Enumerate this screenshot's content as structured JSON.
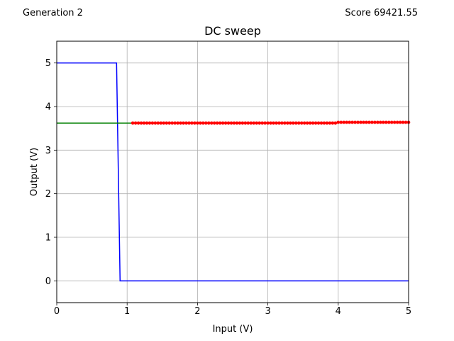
{
  "header": {
    "generation": "Generation 2",
    "score": "Score 69421.55"
  },
  "chart_data": {
    "type": "line",
    "title": "DC sweep",
    "xlabel": "Input (V)",
    "ylabel": "Output (V)",
    "xlim": [
      0,
      5
    ],
    "ylim": [
      -0.5,
      5.5
    ],
    "xticks": [
      0,
      1,
      2,
      3,
      4,
      5
    ],
    "yticks": [
      0,
      1,
      2,
      3,
      4,
      5
    ],
    "grid": true,
    "series": [
      {
        "color": "#0000ff",
        "style": "line",
        "x": [
          0,
          0.85,
          0.9,
          5
        ],
        "y": [
          5,
          5,
          0,
          0
        ]
      },
      {
        "color": "#008000",
        "style": "line",
        "x": [
          0,
          1.08
        ],
        "y": [
          3.62,
          3.62
        ]
      },
      {
        "color": "#ff0000",
        "style": "markers",
        "x_start": 1.08,
        "x_end": 5.0,
        "x_step": 0.04,
        "y_before_4": 3.62,
        "y_from_4": 3.64
      }
    ]
  }
}
